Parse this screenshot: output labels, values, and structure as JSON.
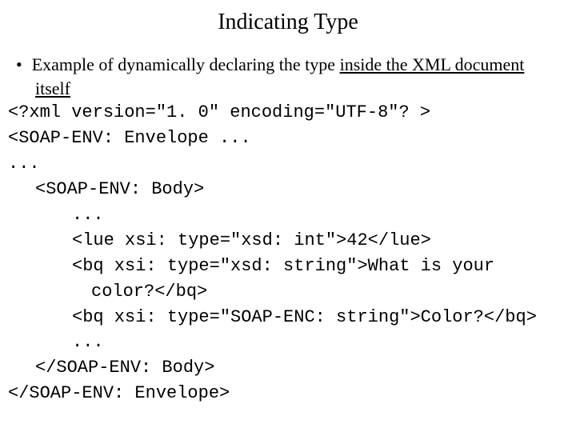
{
  "title": "Indicating Type",
  "bullet": {
    "marker": "•",
    "text_before": "Example of dynamically declaring the type ",
    "underlined": "inside the XML document",
    "text_cont": "itself"
  },
  "code": {
    "l1": "<?xml version=\"1. 0\" encoding=\"UTF-8\"? >",
    "l2": "<SOAP-ENV: Envelope ...",
    "l3": "...",
    "l4": "<SOAP-ENV: Body>",
    "l5": "...",
    "l6": "<lue xsi: type=\"xsd: int\">42</lue>",
    "l7": "<bq xsi: type=\"xsd: string\">What is your",
    "l7b": "color?</bq>",
    "l8": "<bq xsi: type=\"SOAP-ENC: string\">Color?</bq>",
    "l9": "...",
    "l10": "</SOAP-ENV: Body>",
    "l11": "</SOAP-ENV: Envelope>"
  },
  "colors": {
    "background": "#ffffff",
    "text": "#000000"
  },
  "fonts": {
    "title_family": "Times New Roman",
    "title_size_pt": 21,
    "body_family": "Times New Roman",
    "body_size_pt": 16,
    "code_family": "Courier New",
    "code_size_pt": 16
  }
}
